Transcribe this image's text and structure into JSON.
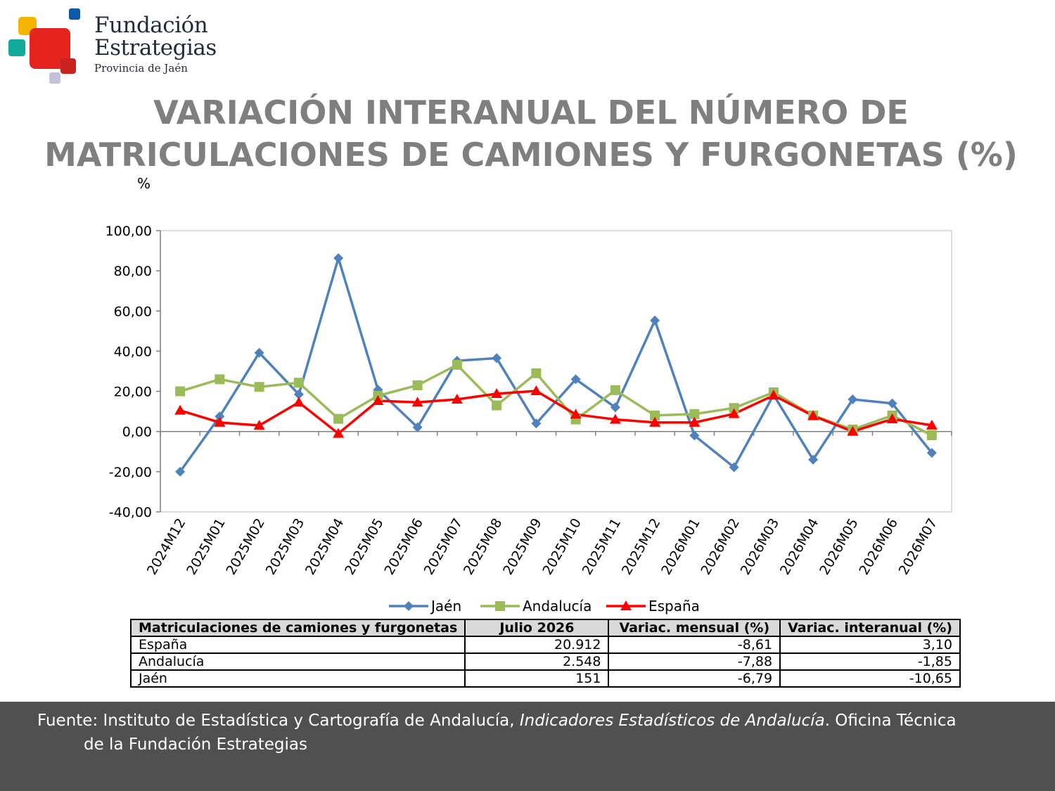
{
  "header": {
    "logo_name_line1": "Fundación",
    "logo_name_line2": "Estrategias",
    "logo_subtitle": "Provincia de Jaén",
    "title_line1": "VARIACIÓN INTERANUAL DEL NÚMERO DE",
    "title_line2": "MATRICULACIONES DE CAMIONES Y FURGONETAS (%)",
    "unit_label": "%"
  },
  "colors": {
    "jaen": "#4f81bd",
    "andalucia": "#9bbb59",
    "espana": "#ff0000",
    "title": "#7f7f7f",
    "footer_bg": "#505050"
  },
  "chart_data": {
    "type": "line",
    "categories": [
      "2024M12",
      "2025M01",
      "2025M02",
      "2025M03",
      "2025M04",
      "2025M05",
      "2025M06",
      "2025M07",
      "2025M08",
      "2025M09",
      "2025M10",
      "2025M11",
      "2025M12",
      "2026M01",
      "2026M02",
      "2026M03",
      "2026M04",
      "2026M05",
      "2026M06",
      "2026M07"
    ],
    "ylim": [
      -40,
      100
    ],
    "yticks": [
      "100,00",
      "80,00",
      "60,00",
      "40,00",
      "20,00",
      "0,00",
      "-20,00",
      "-40,00"
    ],
    "ytick_values": [
      100,
      80,
      60,
      40,
      20,
      0,
      -20,
      -40
    ],
    "grid": false,
    "legend_position": "bottom",
    "series": [
      {
        "name": "Jaén",
        "marker": "diamond",
        "values": [
          -20.0,
          7.5,
          39.2,
          18.5,
          86.3,
          20.8,
          2.1,
          35.2,
          36.5,
          4.0,
          26.0,
          12.0,
          55.3,
          -2.0,
          -17.8,
          18.2,
          -14.0,
          16.0,
          14.0,
          -10.65
        ]
      },
      {
        "name": "Andalucía",
        "marker": "square",
        "values": [
          20.0,
          26.0,
          22.2,
          24.3,
          6.3,
          17.8,
          23.0,
          33.2,
          13.0,
          29.0,
          6.0,
          20.6,
          8.0,
          8.7,
          11.7,
          19.5,
          8.0,
          1.0,
          8.0,
          -1.85
        ]
      },
      {
        "name": "España",
        "marker": "triangle",
        "values": [
          10.5,
          4.5,
          3.0,
          14.5,
          -1.0,
          15.3,
          14.5,
          16.0,
          18.8,
          20.2,
          8.5,
          6.0,
          4.5,
          4.5,
          8.8,
          18.0,
          7.8,
          0.0,
          6.2,
          3.1
        ]
      }
    ]
  },
  "table": {
    "headers": [
      "Matriculaciones de camiones y furgonetas",
      "Julio 2026",
      "Variac. mensual (%)",
      "Variac. interanual (%)"
    ],
    "rows": [
      {
        "name": "España",
        "value": "20.912",
        "monthly": "-8,61",
        "yearly": "3,10"
      },
      {
        "name": "Andalucía",
        "value": "2.548",
        "monthly": "-7,88",
        "yearly": "-1,85"
      },
      {
        "name": "Jaén",
        "value": "151",
        "monthly": "-6,79",
        "yearly": "-10,65"
      }
    ]
  },
  "footer": {
    "source_prefix": "Fuente: Instituto de Estadística y Cartografía de Andalucía, ",
    "source_italic": "Indicadores Estadísticos de Andalucía",
    "source_suffix": ". Oficina Técnica",
    "source_line2": "de la Fundación Estrategias"
  }
}
